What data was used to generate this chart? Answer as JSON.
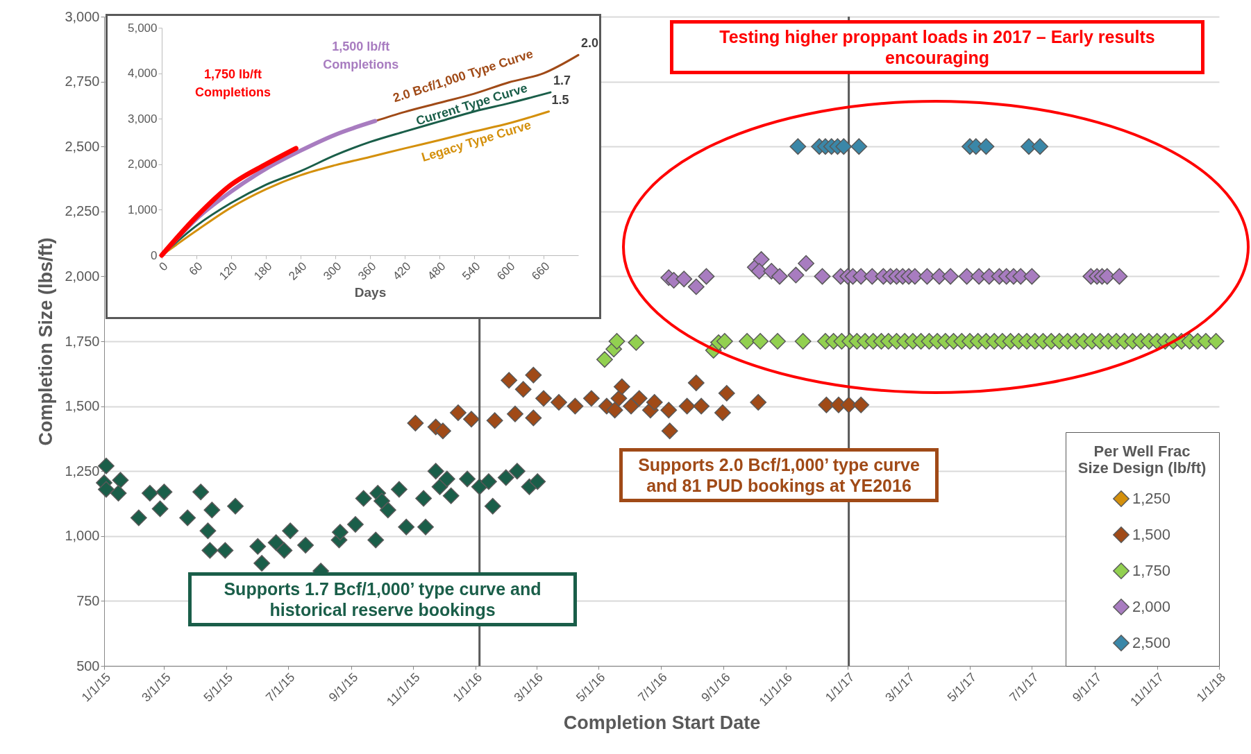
{
  "chart_data": [
    {
      "type": "scatter",
      "xlabel": "Completion Start Date",
      "ylabel": "Completion Size (lbs/ft)",
      "legend_title": "Per Well Frac Size Design (lb/ft)",
      "legend": "bottom right",
      "marker": "diamond",
      "grid": "y",
      "xlim": [
        "2015-01-01",
        "2018-01-01"
      ],
      "xticks": [
        {
          "value": "2015-01-01",
          "label": "1/1/15"
        },
        {
          "value": "2015-03-01",
          "label": "3/1/15"
        },
        {
          "value": "2015-05-01",
          "label": "5/1/15"
        },
        {
          "value": "2015-07-01",
          "label": "7/1/15"
        },
        {
          "value": "2015-09-01",
          "label": "9/1/15"
        },
        {
          "value": "2015-11-01",
          "label": "11/1/15"
        },
        {
          "value": "2016-01-01",
          "label": "1/1/16"
        },
        {
          "value": "2016-03-01",
          "label": "3/1/16"
        },
        {
          "value": "2016-05-01",
          "label": "5/1/16"
        },
        {
          "value": "2016-07-01",
          "label": "7/1/16"
        },
        {
          "value": "2016-09-01",
          "label": "9/1/16"
        },
        {
          "value": "2016-11-01",
          "label": "11/1/16"
        },
        {
          "value": "2017-01-01",
          "label": "1/1/17"
        },
        {
          "value": "2017-03-01",
          "label": "3/1/17"
        },
        {
          "value": "2017-05-01",
          "label": "5/1/17"
        },
        {
          "value": "2017-07-01",
          "label": "7/1/17"
        },
        {
          "value": "2017-09-01",
          "label": "9/1/17"
        },
        {
          "value": "2017-11-01",
          "label": "11/1/17"
        },
        {
          "value": "2018-01-01",
          "label": "1/1/18"
        }
      ],
      "ylim": [
        500,
        3000
      ],
      "yticks": [
        500,
        750,
        {
          "value": 1000,
          "label": "1,000"
        },
        {
          "value": 1250,
          "label": "1,250"
        },
        {
          "value": 1500,
          "label": "1,500"
        },
        {
          "value": 1750,
          "label": "1,750"
        },
        {
          "value": 2000,
          "label": "2,000"
        },
        {
          "value": 2250,
          "label": "2,250"
        },
        {
          "value": 2500,
          "label": "2,500"
        },
        {
          "value": 2750,
          "label": "2,750"
        },
        {
          "value": 3000,
          "label": "3,000"
        }
      ],
      "ref_lines": [
        {
          "axis": "x",
          "value": "2016-01-05",
          "color": "#595959"
        },
        {
          "axis": "x",
          "value": "2017-01-02",
          "color": "#595959"
        }
      ],
      "annotations": [
        "Testing higher proppant loads in 2017 – Early results encouraging",
        "Supports 2.0 Bcf/1,000’ type curve and 81 PUD bookings at YE2016",
        "Supports 1.7 Bcf/1,000’ type curve and historical reserve bookings"
      ],
      "series": [
        {
          "color": "#1a5e49",
          "x": [
            "2015-01-03",
            "2015-01-01",
            "2015-01-03",
            "2015-01-17",
            "2015-01-15",
            "2015-02-04",
            "2015-02-15",
            "2015-03-01",
            "2015-02-25",
            "2015-03-24",
            "2015-04-06",
            "2015-04-17",
            "2015-04-13",
            "2015-04-15",
            "2015-04-30",
            "2015-05-10",
            "2015-06-01",
            "2015-06-05",
            "2015-06-19",
            "2015-07-03",
            "2015-06-27",
            "2015-07-18",
            "2015-08-02",
            "2015-08-20",
            "2015-08-21",
            "2015-09-05",
            "2015-09-25",
            "2015-09-13",
            "2015-09-27",
            "2015-10-01",
            "2015-10-07",
            "2015-10-18",
            "2015-10-25",
            "2015-11-13",
            "2015-11-11",
            "2015-11-23",
            "2015-11-27",
            "2015-12-04",
            "2015-12-08",
            "2015-12-24",
            "2016-01-05",
            "2016-01-18",
            "2016-01-14",
            "2016-01-31",
            "2016-02-11",
            "2016-02-23",
            "2016-03-02"
          ],
          "values": [
            1270,
            1205,
            1180,
            1215,
            1165,
            1070,
            1165,
            1170,
            1105,
            1070,
            1170,
            1100,
            1020,
            945,
            945,
            1115,
            960,
            895,
            975,
            1020,
            945,
            965,
            865,
            985,
            1015,
            1045,
            985,
            1145,
            1165,
            1135,
            1100,
            1180,
            1035,
            1035,
            1145,
            1250,
            1190,
            1220,
            1155,
            1220,
            1190,
            1115,
            1210,
            1225,
            1250,
            1190,
            1210
          ]
        },
        {
          "name": "1,250",
          "color": "#d4900c"
        },
        {
          "name": "1,500",
          "color": "#a04a17",
          "x": [
            "2015-11-03",
            "2015-11-23",
            "2015-11-30",
            "2015-12-15",
            "2015-12-28",
            "2016-01-20",
            "2016-02-03",
            "2016-02-17",
            "2016-02-27",
            "2016-02-09",
            "2016-02-27",
            "2016-03-08",
            "2016-03-23",
            "2016-04-08",
            "2016-04-24",
            "2016-05-09",
            "2016-05-21",
            "2016-05-17",
            "2016-06-02",
            "2016-06-10",
            "2016-06-21",
            "2016-05-24",
            "2016-06-25",
            "2016-07-09",
            "2016-07-10",
            "2016-07-27",
            "2016-08-05",
            "2016-08-10",
            "2016-08-31",
            "2016-09-04",
            "2016-10-05",
            "2016-12-11",
            "2016-12-23",
            "2017-01-02",
            "2017-01-14"
          ],
          "values": [
            1435,
            1420,
            1405,
            1475,
            1450,
            1445,
            1600,
            1565,
            1620,
            1470,
            1455,
            1530,
            1515,
            1500,
            1530,
            1500,
            1530,
            1485,
            1500,
            1530,
            1485,
            1575,
            1515,
            1485,
            1405,
            1500,
            1590,
            1500,
            1475,
            1550,
            1515,
            1505,
            1505,
            1505,
            1505
          ]
        },
        {
          "name": "1,750",
          "color": "#92d050",
          "x": [
            "2016-05-07",
            "2016-05-16",
            "2016-05-19",
            "2016-06-07",
            "2016-08-22",
            "2016-08-27",
            "2016-09-02",
            "2016-09-24",
            "2016-10-07",
            "2016-10-24",
            "2016-11-18",
            "2016-12-10",
            "2016-12-18",
            "2016-12-26",
            "2017-01-03",
            "2017-01-10",
            "2017-01-18",
            "2017-01-26",
            "2017-02-03",
            "2017-02-10",
            "2017-02-18",
            "2017-02-26",
            "2017-03-06",
            "2017-03-14",
            "2017-03-22",
            "2017-03-30",
            "2017-04-07",
            "2017-04-15",
            "2017-04-23",
            "2017-05-01",
            "2017-05-09",
            "2017-05-17",
            "2017-05-25",
            "2017-06-02",
            "2017-06-10",
            "2017-06-18",
            "2017-06-26",
            "2017-07-04",
            "2017-07-12",
            "2017-07-20",
            "2017-07-28",
            "2017-08-05",
            "2017-08-13",
            "2017-08-21",
            "2017-08-29",
            "2017-09-06",
            "2017-09-14",
            "2017-09-22",
            "2017-09-30",
            "2017-10-08",
            "2017-10-16",
            "2017-10-24",
            "2017-11-01",
            "2017-11-09",
            "2017-11-17",
            "2017-11-25",
            "2017-12-03",
            "2017-12-11",
            "2017-12-19",
            "2017-12-29"
          ],
          "values": [
            1680,
            1720,
            1750,
            1745,
            1715,
            1745,
            1750,
            1750,
            1750,
            1750,
            1750,
            1750,
            1750,
            1750,
            1750,
            1750,
            1750,
            1750,
            1750,
            1750,
            1750,
            1750,
            1750,
            1750,
            1750,
            1750,
            1750,
            1750,
            1750,
            1750,
            1750,
            1750,
            1750,
            1750,
            1750,
            1750,
            1750,
            1750,
            1750,
            1750,
            1750,
            1750,
            1750,
            1750,
            1750,
            1750,
            1750,
            1750,
            1750,
            1750,
            1750,
            1750,
            1750,
            1750,
            1750,
            1750,
            1750,
            1750,
            1750,
            1750
          ]
        },
        {
          "name": "2,000",
          "color": "#a87cc0",
          "x": [
            "2016-07-09",
            "2016-07-14",
            "2016-07-24",
            "2016-08-05",
            "2016-08-15",
            "2016-10-02",
            "2016-10-08",
            "2016-10-06",
            "2016-10-18",
            "2016-10-26",
            "2016-11-11",
            "2016-11-21",
            "2016-12-07",
            "2016-12-25",
            "2017-01-01",
            "2017-01-06",
            "2017-01-14",
            "2017-01-25",
            "2017-02-05",
            "2017-02-12",
            "2017-02-18",
            "2017-02-24",
            "2017-03-02",
            "2017-03-08",
            "2017-03-20",
            "2017-04-01",
            "2017-04-12",
            "2017-04-28",
            "2017-05-10",
            "2017-05-20",
            "2017-05-30",
            "2017-06-06",
            "2017-06-13",
            "2017-06-20",
            "2017-07-01",
            "2017-08-28",
            "2017-09-03",
            "2017-09-08",
            "2017-09-13",
            "2017-09-25"
          ],
          "values": [
            1995,
            1985,
            1990,
            1960,
            2000,
            2035,
            2065,
            2020,
            2020,
            2000,
            2005,
            2050,
            2000,
            2000,
            2000,
            2000,
            2000,
            2000,
            2000,
            2000,
            2000,
            2000,
            2000,
            2000,
            2000,
            2000,
            2000,
            2000,
            2000,
            2000,
            2000,
            2000,
            2000,
            2000,
            2000,
            2000,
            2000,
            2000,
            2000,
            2000
          ]
        },
        {
          "name": "2,500",
          "color": "#3a87a8",
          "x": [
            "2016-11-13",
            "2016-12-04",
            "2016-12-10",
            "2016-12-16",
            "2016-12-22",
            "2016-12-28",
            "2017-01-12",
            "2017-05-01",
            "2017-05-07",
            "2017-05-17",
            "2017-06-28",
            "2017-07-09"
          ],
          "values": [
            2500,
            2500,
            2500,
            2500,
            2500,
            2500,
            2500,
            2500,
            2500,
            2500,
            2500,
            2500
          ]
        }
      ]
    },
    {
      "type": "line",
      "xlabel": "Days",
      "xlim": [
        0,
        720
      ],
      "xticks": [
        0,
        60,
        120,
        180,
        240,
        300,
        360,
        420,
        480,
        540,
        600,
        660
      ],
      "ylim": [
        0,
        5000
      ],
      "yticks": [
        0,
        {
          "value": 1000,
          "label": "1,000"
        },
        {
          "value": 2000,
          "label": "2,000"
        },
        {
          "value": 3000,
          "label": "3,000"
        },
        {
          "value": 4000,
          "label": "4,000"
        },
        {
          "value": 5000,
          "label": "5,000"
        }
      ],
      "annotations": [
        {
          "text": "2.0",
          "x": 720,
          "y": 4400
        },
        {
          "text": "1.7",
          "x": 672,
          "y": 3580
        },
        {
          "text": "1.5",
          "x": 669,
          "y": 3160
        }
      ],
      "series": [
        {
          "name": "Legacy Type Curve",
          "color": "#d4900c",
          "x": [
            0,
            60,
            120,
            180,
            240,
            300,
            360,
            420,
            480,
            540,
            600,
            669
          ],
          "values": [
            0,
            540,
            1050,
            1450,
            1760,
            1980,
            2160,
            2350,
            2530,
            2720,
            2900,
            3160
          ]
        },
        {
          "name": "Current Type Curve",
          "color": "#1a5e49",
          "x": [
            0,
            60,
            120,
            180,
            240,
            300,
            360,
            420,
            480,
            540,
            600,
            672
          ],
          "values": [
            0,
            650,
            1150,
            1550,
            1850,
            2200,
            2490,
            2720,
            2940,
            3160,
            3340,
            3580
          ]
        },
        {
          "name": "2.0 Bcf/1,000 Type Curve",
          "color": "#a04a17",
          "x": [
            369,
            420,
            480,
            540,
            600,
            660,
            720
          ],
          "values": [
            2950,
            3150,
            3350,
            3550,
            3800,
            4000,
            4400
          ]
        },
        {
          "name": "1,500 lb/ft Completions",
          "color": "#a87cc0",
          "x": [
            0,
            60,
            120,
            180,
            240,
            300,
            369
          ],
          "values": [
            0,
            800,
            1400,
            1900,
            2300,
            2650,
            2950
          ]
        },
        {
          "name": "1,750 lb/ft Completions",
          "color": "#ff0000",
          "x": [
            0,
            60,
            120,
            180,
            232
          ],
          "values": [
            0,
            850,
            1550,
            2000,
            2350
          ]
        }
      ]
    }
  ]
}
